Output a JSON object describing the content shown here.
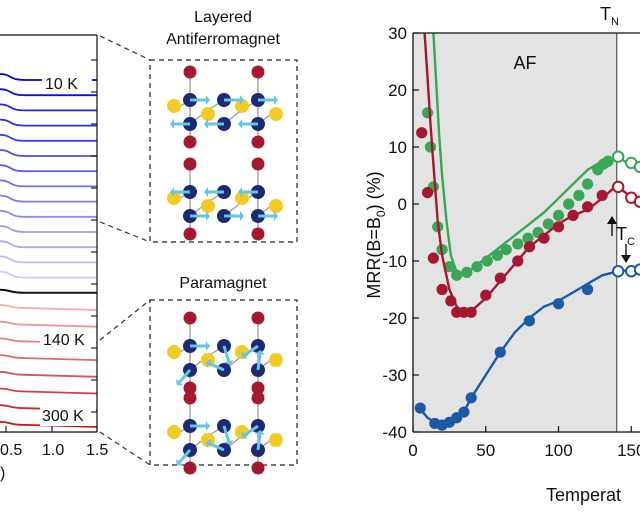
{
  "left_panel": {
    "temp_labels": [
      "10 K",
      "140 K",
      "300 K"
    ],
    "x_ticks": [
      "0.5",
      "1.0",
      "1.5"
    ],
    "x_unit": ")"
  },
  "schematic": {
    "top_title_line1": "Layered",
    "top_title_line2": "Antiferromagnet",
    "bottom_title": "Paramagnet",
    "colors": {
      "red": "#a5182f",
      "navy": "#1b2a72",
      "yellow": "#f2cc24",
      "arrow": "#63c6e8"
    }
  },
  "chart_data": {
    "type": "line",
    "title": "",
    "ylabel": "MRR(B=B0) (%)",
    "ylabel_main": "MRR(B=B",
    "ylabel_sub": "0",
    "ylabel_tail": ") (%)",
    "xlabel": "Temperat",
    "xlim": [
      0,
      156
    ],
    "ylim": [
      -40,
      30
    ],
    "x_ticks": [
      0,
      50,
      100,
      150
    ],
    "y_ticks": [
      -40,
      -30,
      -20,
      -10,
      0,
      10,
      20,
      30
    ],
    "annotations": {
      "af_region": "AF",
      "af_shade_range": [
        0,
        140
      ],
      "tn_label": "T",
      "tn_sub": "N",
      "tn_x": 140,
      "tc_label": "T",
      "tc_sub": "C"
    },
    "series": [
      {
        "color": "#3aa657",
        "curve_x": [
          14,
          16,
          18,
          20,
          23,
          26,
          30,
          35,
          40,
          50,
          60,
          70,
          80,
          90,
          100,
          110,
          120,
          130,
          138,
          141,
          146,
          152,
          156
        ],
        "curve_y": [
          30,
          21,
          12,
          5,
          -3,
          -9,
          -12,
          -12.5,
          -11.5,
          -9.5,
          -7.5,
          -5.5,
          -3.5,
          -1.5,
          1.0,
          3.5,
          6.0,
          7.5,
          8.0,
          8.3,
          7.4,
          6.6,
          6.3
        ],
        "points_x": [
          10,
          12,
          14,
          17,
          20,
          25,
          30,
          37,
          44,
          51,
          58,
          64,
          72,
          79,
          86,
          93,
          100,
          107,
          114,
          120,
          127,
          131,
          134,
          141
        ],
        "points_y": [
          16,
          10,
          3,
          -4,
          -8,
          -11,
          -12.5,
          -12,
          -11,
          -10,
          -9,
          -8,
          -7,
          -6,
          -5,
          -3.5,
          -2,
          0,
          1.5,
          3.5,
          6,
          7,
          7.5,
          8.3
        ],
        "open_x": [
          141,
          150,
          156
        ],
        "open_y": [
          8.3,
          7.2,
          6.5
        ]
      },
      {
        "color": "#a5182f",
        "curve_x": [
          8,
          10,
          12,
          14,
          17,
          20,
          25,
          30,
          35,
          40,
          50,
          60,
          70,
          80,
          90,
          100,
          110,
          120,
          130,
          138,
          141,
          146,
          152,
          156
        ],
        "curve_y": [
          30,
          22,
          14,
          7,
          -3,
          -9,
          -15,
          -18,
          -19,
          -18.8,
          -16.5,
          -13.5,
          -10.5,
          -7.5,
          -5.5,
          -3.5,
          -2.0,
          -1.0,
          1.0,
          2.8,
          3.0,
          2.0,
          0.8,
          0.4
        ],
        "points_x": [
          6,
          10,
          14,
          20,
          26,
          30,
          35,
          40,
          50,
          60,
          72,
          80,
          90,
          100,
          110,
          120,
          130,
          141
        ],
        "points_y": [
          12.5,
          2,
          -9.5,
          -15,
          -17,
          -19,
          -19,
          -19,
          -16,
          -13,
          -10,
          -7.5,
          -6,
          -4,
          -2,
          -0.5,
          1.5,
          3
        ],
        "open_x": [
          141,
          150,
          156
        ],
        "open_y": [
          3,
          1.1,
          0.4
        ]
      },
      {
        "color": "#1b5aa7",
        "curve_x": [
          5,
          10,
          16,
          20,
          25,
          30,
          35,
          40,
          50,
          60,
          70,
          80,
          90,
          100,
          110,
          120,
          130,
          141,
          150,
          156
        ],
        "curve_y": [
          -36,
          -37.5,
          -38.5,
          -38.8,
          -38.4,
          -37.5,
          -36.5,
          -34,
          -30,
          -26,
          -22.5,
          -20,
          -18,
          -17,
          -15.5,
          -14,
          -12.5,
          -11.8,
          -11.6,
          -11.5
        ],
        "points_x": [
          5,
          15,
          20,
          25,
          30,
          35,
          40,
          60,
          80,
          100,
          120
        ],
        "points_y": [
          -35.8,
          -38.5,
          -38.8,
          -38.3,
          -37.5,
          -36.5,
          -34,
          -26,
          -20.5,
          -17.5,
          -15
        ],
        "open_x": [
          141,
          150,
          156
        ],
        "open_y": [
          -11.8,
          -11.8,
          -11.5
        ]
      }
    ]
  }
}
